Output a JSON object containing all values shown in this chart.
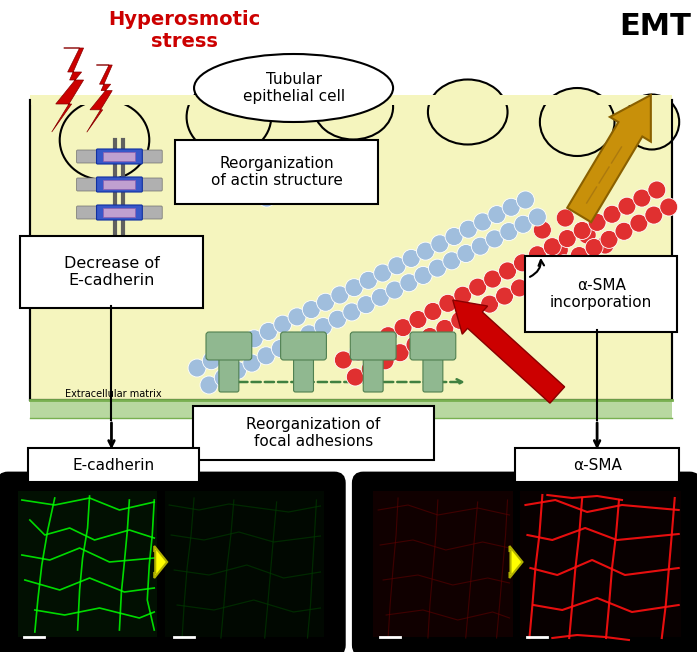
{
  "bg_color": "#ffffff",
  "cell_bg": "#f5f5be",
  "cell_border": "#c8c860",
  "text_emt": "EMT",
  "text_hyperosmotic": "Hyperosmotic\nstress",
  "text_tubular": "Tubular\nepithelial cell",
  "text_reorg_actin": "Reorganization\nof actin structure",
  "text_decrease": "Decrease of\nE-cadherin",
  "text_alpha_sma_incorp": "α-SMA\nincorporation",
  "text_reorg_focal": "Reorganization of\nfocal adhesions",
  "text_extracellular": "Extracellular matrix",
  "text_ecadherin": "E-cadherin",
  "text_alpha_sma": "α-SMA",
  "blue_circle_color": "#a0bedd",
  "red_circle_color": "#e03030",
  "green_fp_color": "#90b890",
  "blue_bar_color": "#3858c8",
  "purple_rect_color": "#c0a0d0",
  "gray_bar_color": "#b0b0b0",
  "arrow_gold_color": "#c8900a",
  "arrow_red_color": "#cc0000",
  "ecm_color": "#b8d8a0",
  "ecm_line_color": "#78b050"
}
